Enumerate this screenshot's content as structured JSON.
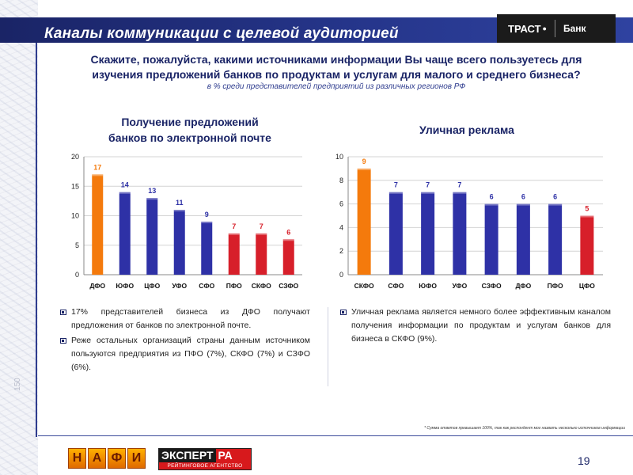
{
  "header": {
    "title": "Каналы коммуникации с целевой аудиторией",
    "logo_main": "ТРАСТ",
    "logo_bank": "Банк"
  },
  "question": {
    "line1": "Скажите, пожалуйста, какими источниками информации Вы чаще всего пользуетесь для",
    "line2": "изучения предложений банков по продуктам и услугам для малого и среднего бизнеса?",
    "subtitle": "в % среди представителей предприятий из различных регионов РФ"
  },
  "chart_data": [
    {
      "type": "bar",
      "title_line1": "Получение предложений",
      "title_line2": "банков по электронной почте",
      "categories": [
        "ДФО",
        "ЮФО",
        "ЦФО",
        "УФО",
        "СФО",
        "ПФО",
        "СКФО",
        "СЗФО"
      ],
      "values": [
        17,
        14,
        13,
        11,
        9,
        7,
        7,
        6
      ],
      "bar_colors": [
        "#f47a0c",
        "#2e31a6",
        "#2e31a6",
        "#2e31a6",
        "#2e31a6",
        "#d71f2a",
        "#d71f2a",
        "#d71f2a"
      ],
      "label_colors": [
        "#f47a0c",
        "#2e31a6",
        "#2e31a6",
        "#2e31a6",
        "#2e31a6",
        "#d71f2a",
        "#d71f2a",
        "#d71f2a"
      ],
      "yticks": [
        0,
        5,
        10,
        15,
        20
      ],
      "ylim": [
        0,
        20
      ],
      "xlabel": "",
      "ylabel": ""
    },
    {
      "type": "bar",
      "title_line1": "Уличная реклама",
      "title_line2": "",
      "categories": [
        "СКФО",
        "СФО",
        "ЮФО",
        "УФО",
        "СЗФО",
        "ДФО",
        "ПФО",
        "ЦФО"
      ],
      "values": [
        9,
        7,
        7,
        7,
        6,
        6,
        6,
        5
      ],
      "bar_colors": [
        "#f47a0c",
        "#2e31a6",
        "#2e31a6",
        "#2e31a6",
        "#2e31a6",
        "#2e31a6",
        "#2e31a6",
        "#d71f2a"
      ],
      "label_colors": [
        "#f47a0c",
        "#2e31a6",
        "#2e31a6",
        "#2e31a6",
        "#2e31a6",
        "#2e31a6",
        "#2e31a6",
        "#d71f2a"
      ],
      "yticks": [
        0,
        2,
        4,
        6,
        8,
        10
      ],
      "ylim": [
        0,
        10
      ],
      "xlabel": "",
      "ylabel": ""
    }
  ],
  "bullets_left": [
    "17% представителей бизнеса из ДФО получают предложения от банков по электронной почте.",
    "Реже остальных организаций страны данным источником пользуются предприятия из ПФО (7%), СКФО (7%) и СЗФО (6%)."
  ],
  "bullets_right": [
    "Уличная реклама является немного более эффективным каналом получения информации по продуктам и услугам банков для бизнеса в СКФО (9%)."
  ],
  "footnote": "* Сумма ответов превышает 100%, так как респондент мог назвать несколько источников информации",
  "footer": {
    "nafi_letters": [
      "Н",
      "А",
      "Ф",
      "И"
    ],
    "expert_part1": "ЭКСПЕРТ",
    "expert_part2": "РА",
    "expert_sub": "РЕЙТИНГОВОЕ АГЕНТСТВО",
    "page_number": "19",
    "deco_number": "150"
  },
  "colors": {
    "header_bg": "#25358a",
    "title_blue": "#1a2466",
    "orange": "#f47a0c",
    "blue_bar": "#2e31a6",
    "red_bar": "#d71f2a"
  }
}
